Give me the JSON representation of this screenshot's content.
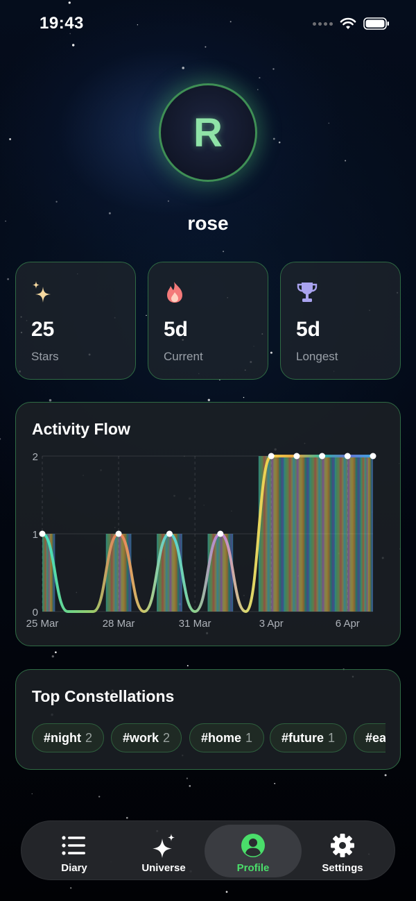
{
  "status_bar": {
    "time": "19:43"
  },
  "profile": {
    "initial": "R",
    "username": "rose"
  },
  "stats": [
    {
      "icon": "sparkles-icon",
      "value": "25",
      "label": "Stars"
    },
    {
      "icon": "flame-icon",
      "value": "5d",
      "label": "Current"
    },
    {
      "icon": "trophy-icon",
      "value": "5d",
      "label": "Longest"
    }
  ],
  "activity": {
    "title": "Activity Flow"
  },
  "chart_data": {
    "type": "area",
    "title": "Activity Flow",
    "x": [
      "25 Mar",
      "26 Mar",
      "27 Mar",
      "28 Mar",
      "29 Mar",
      "30 Mar",
      "31 Mar",
      "1 Apr",
      "2 Apr",
      "3 Apr",
      "4 Apr",
      "5 Apr",
      "6 Apr",
      "7 Apr"
    ],
    "values": [
      1,
      0,
      0,
      1,
      0,
      1,
      0,
      1,
      0,
      2,
      2,
      2,
      2,
      2
    ],
    "x_tick_labels": [
      "25 Mar",
      "28 Mar",
      "31 Mar",
      "3 Apr",
      "6 Apr"
    ],
    "y_ticks": [
      "0",
      "1",
      "2"
    ],
    "ylim": [
      0,
      2
    ],
    "grid": true,
    "legend": "none"
  },
  "constellations": {
    "title": "Top Constellations",
    "tags": [
      {
        "name": "#night",
        "count": "2"
      },
      {
        "name": "#work",
        "count": "2"
      },
      {
        "name": "#home",
        "count": "1"
      },
      {
        "name": "#future",
        "count": "1"
      },
      {
        "name": "#ea",
        "count": ""
      }
    ]
  },
  "tabbar": {
    "tabs": [
      {
        "label": "Diary",
        "icon": "list-icon",
        "active": false
      },
      {
        "label": "Universe",
        "icon": "sparkles-icon",
        "active": false
      },
      {
        "label": "Profile",
        "icon": "person-icon",
        "active": true
      },
      {
        "label": "Settings",
        "icon": "gear-icon",
        "active": false
      }
    ]
  },
  "colors": {
    "accent": "#4ade6a",
    "card_border": "#2f6b44",
    "background": "#02050b"
  }
}
